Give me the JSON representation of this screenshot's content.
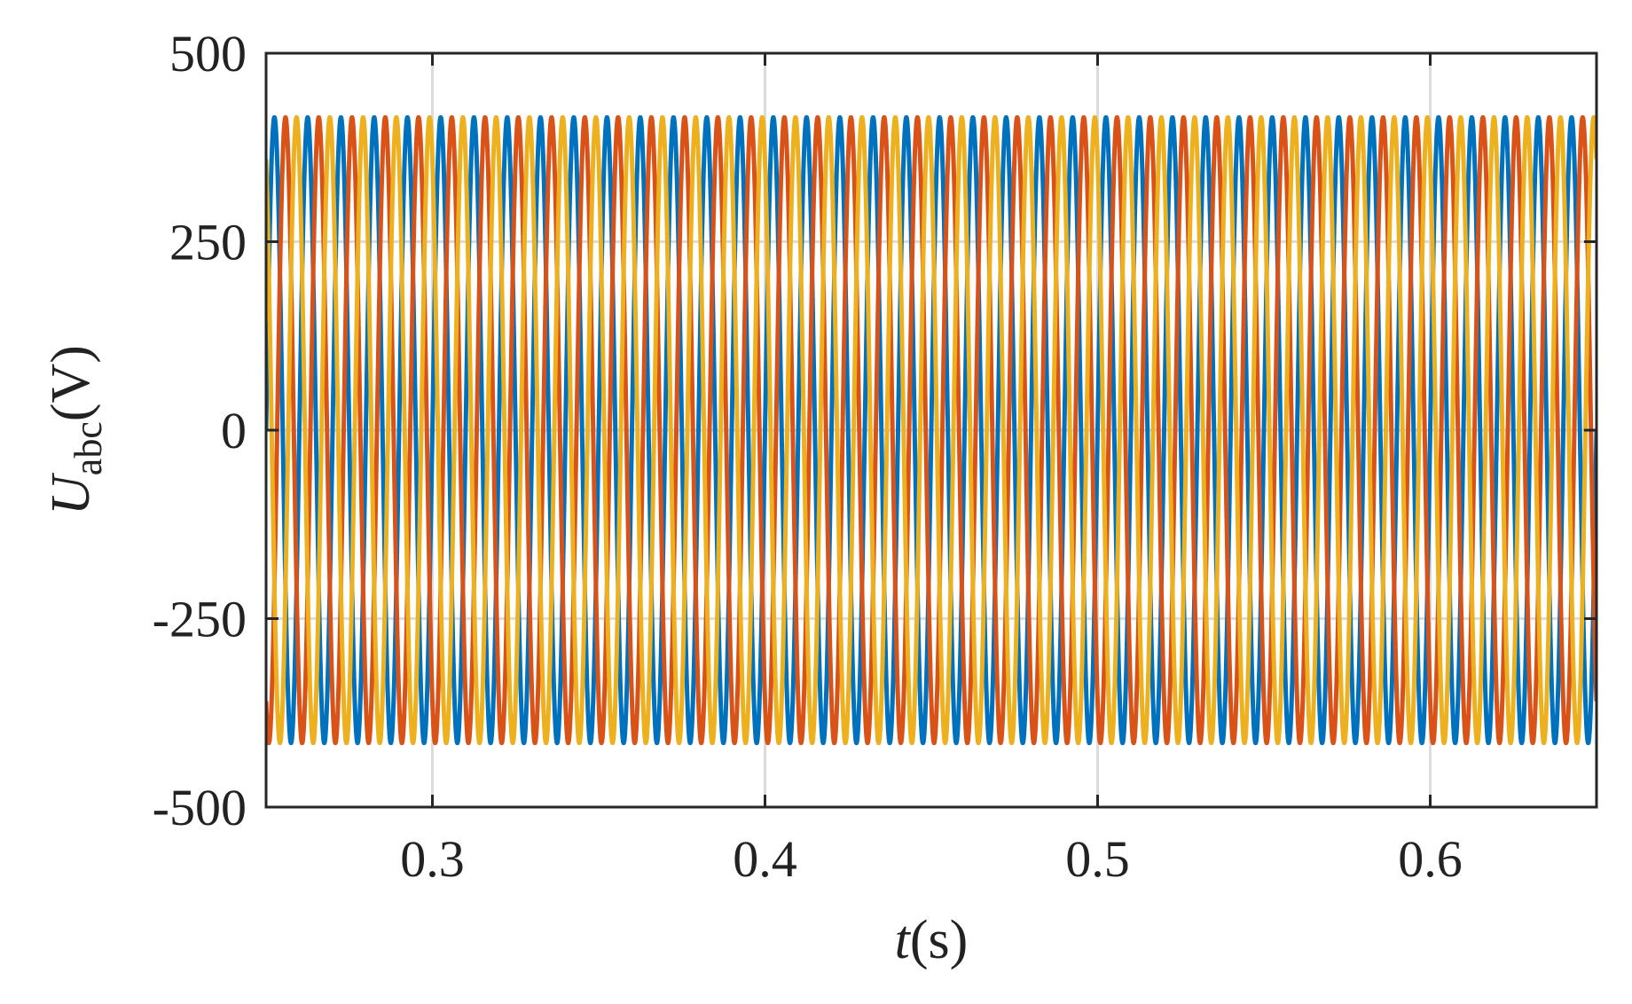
{
  "chart_data": {
    "type": "line",
    "title": "",
    "xlabel": {
      "var": "t",
      "unit": "(s)"
    },
    "ylabel": {
      "var": "U",
      "sub": "abc",
      "unit": "(V)"
    },
    "xlim": [
      0.25,
      0.65
    ],
    "ylim": [
      -500,
      500
    ],
    "xticks": [
      0.3,
      0.4,
      0.5,
      0.6
    ],
    "xtick_labels": [
      "0.3",
      "0.4",
      "0.5",
      "0.6"
    ],
    "yticks": [
      500,
      250,
      0,
      -250,
      -500
    ],
    "ytick_labels": [
      "500",
      "250",
      "0",
      "-250",
      "-500"
    ],
    "grid": true,
    "legend": "none",
    "signal": {
      "amplitude": 415,
      "frequency_hz": 100
    },
    "series": [
      {
        "phase_deg": 0,
        "color": "#0072BD",
        "x": [
          0.25,
          0.2525,
          0.255,
          0.2575,
          0.26,
          0.6,
          0.6025,
          0.605,
          0.6075,
          0.61,
          0.65
        ],
        "y": [
          0,
          415,
          0,
          -415,
          0,
          0,
          415,
          0,
          -415,
          0,
          0
        ]
      },
      {
        "phase_deg": -120,
        "color": "#D95319",
        "x": [
          0.25,
          0.2525,
          0.255,
          0.2575,
          0.26,
          0.6,
          0.6025,
          0.605,
          0.6075,
          0.61,
          0.65
        ],
        "y": [
          -359,
          208,
          359,
          -208,
          -359,
          -359,
          208,
          359,
          -208,
          -359,
          -359
        ]
      },
      {
        "phase_deg": 120,
        "color": "#EDB120",
        "x": [
          0.25,
          0.2525,
          0.255,
          0.2575,
          0.26,
          0.6,
          0.6025,
          0.605,
          0.6075,
          0.61,
          0.65
        ],
        "y": [
          359,
          -208,
          -359,
          208,
          359,
          359,
          -208,
          -359,
          208,
          359,
          359
        ]
      }
    ]
  }
}
